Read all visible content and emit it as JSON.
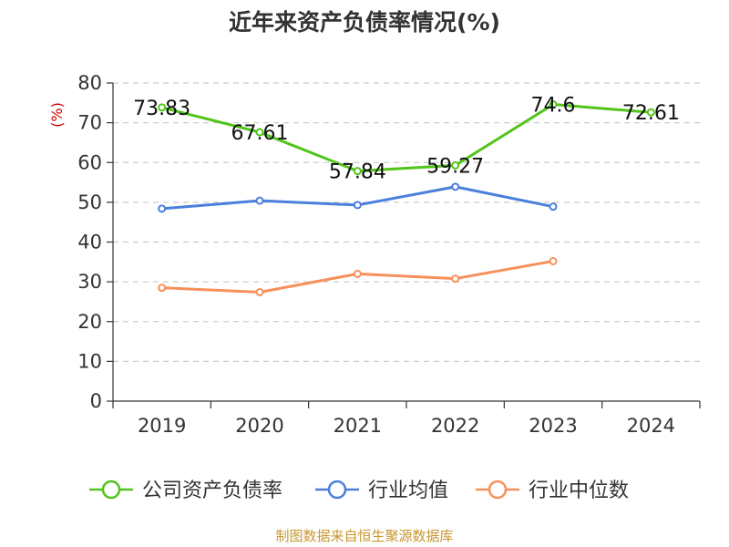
{
  "chart_data": {
    "type": "line",
    "title": "近年来资产负债率情况(%)",
    "ylabel": "(%)",
    "xlabel": "",
    "categories": [
      "2019",
      "2020",
      "2021",
      "2022",
      "2023",
      "2024"
    ],
    "ylim": [
      0,
      80
    ],
    "yticks": [
      "0",
      "10",
      "20",
      "30",
      "40",
      "50",
      "60",
      "70",
      "80"
    ],
    "grid": true,
    "legend_position": "bottom",
    "series": [
      {
        "name": "公司资产负债率",
        "color": "#52c41a",
        "values": [
          73.83,
          67.61,
          57.84,
          59.27,
          74.6,
          72.61
        ],
        "labels": [
          "73.83",
          "67.61",
          "57.84",
          "59.27",
          "74.6",
          "72.61"
        ]
      },
      {
        "name": "行业均值",
        "color": "#4a7fdc",
        "values": [
          48.4,
          50.4,
          49.3,
          53.9,
          48.9,
          null
        ]
      },
      {
        "name": "行业中位数",
        "color": "#f7905b",
        "values": [
          28.5,
          27.4,
          32.0,
          30.8,
          35.2,
          null
        ]
      }
    ]
  },
  "source_text": "制图数据来自恒生聚源数据库",
  "colors": {
    "source": "#c8962e",
    "ylabel": "#cc0000",
    "axis": "#333333",
    "grid": "#cccccc"
  }
}
